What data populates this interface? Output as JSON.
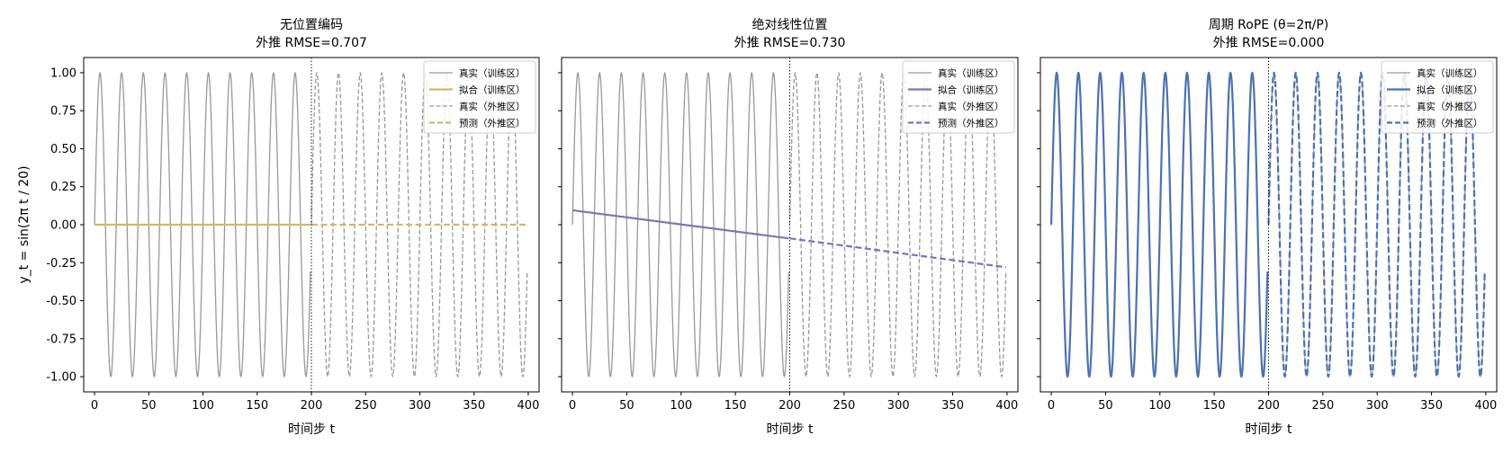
{
  "chart_data": [
    {
      "type": "line",
      "title": "无位置编码",
      "subtitle": "外推 RMSE=0.707",
      "xlabel": "时间步 t",
      "ylabel": "y_t = sin(2π t / 20)",
      "xlim": [
        -10,
        410
      ],
      "ylim": [
        -1.1,
        1.1
      ],
      "xticks": [
        0,
        50,
        100,
        150,
        200,
        250,
        300,
        350,
        400
      ],
      "yticks": [
        1.0,
        0.75,
        0.5,
        0.25,
        0.0,
        -0.25,
        -0.5,
        -0.75,
        -1.0
      ],
      "ytick_labels": [
        "1.00",
        "0.75",
        "0.50",
        "0.25",
        "0.00",
        "-0.25",
        "-0.50",
        "-0.75",
        "-1.00"
      ],
      "train_end": 200,
      "legend_position": "top-right",
      "grid": false,
      "series": [
        {
          "name": "真实（训练区）",
          "x_range": [
            0,
            199
          ],
          "function": "y = sin(2π t / 20)",
          "style": "solid",
          "color": "#999999"
        },
        {
          "name": "拟合（训练区）",
          "x": [
            0,
            199
          ],
          "y": [
            0.0,
            0.0
          ],
          "style": "solid",
          "color": "#ccb974"
        },
        {
          "name": "真实（外推区）",
          "x_range": [
            200,
            399
          ],
          "function": "y = sin(2π t / 20)",
          "style": "dashed",
          "color": "#999999"
        },
        {
          "name": "预测（外推区）",
          "x": [
            200,
            399
          ],
          "y": [
            0.0,
            0.0
          ],
          "style": "dashed",
          "color": "#ccb974"
        }
      ]
    },
    {
      "type": "line",
      "title": "绝对线性位置",
      "subtitle": "外推 RMSE=0.730",
      "xlabel": "时间步 t",
      "ylabel": "",
      "xlim": [
        -10,
        410
      ],
      "ylim": [
        -1.1,
        1.1
      ],
      "xticks": [
        0,
        50,
        100,
        150,
        200,
        250,
        300,
        350,
        400
      ],
      "yticks": [
        1.0,
        0.75,
        0.5,
        0.25,
        0.0,
        -0.25,
        -0.5,
        -0.75,
        -1.0
      ],
      "train_end": 200,
      "legend_position": "top-right",
      "grid": false,
      "series": [
        {
          "name": "真实（训练区）",
          "x_range": [
            0,
            199
          ],
          "function": "y = sin(2π t / 20)",
          "style": "solid",
          "color": "#999999"
        },
        {
          "name": "拟合（训练区）",
          "x": [
            0,
            199
          ],
          "y": [
            0.095,
            -0.09
          ],
          "style": "solid",
          "color": "#8172b2"
        },
        {
          "name": "真实（外推区）",
          "x_range": [
            200,
            399
          ],
          "function": "y = sin(2π t / 20)",
          "style": "dashed",
          "color": "#999999"
        },
        {
          "name": "预测（外推区）",
          "x": [
            200,
            399
          ],
          "y": [
            -0.09,
            -0.28
          ],
          "style": "dashed",
          "color": "#8172b2"
        }
      ]
    },
    {
      "type": "line",
      "title": "周期 RoPE (θ=2π/P)",
      "subtitle": "外推 RMSE=0.000",
      "xlabel": "时间步 t",
      "ylabel": "",
      "xlim": [
        -10,
        410
      ],
      "ylim": [
        -1.1,
        1.1
      ],
      "xticks": [
        0,
        50,
        100,
        150,
        200,
        250,
        300,
        350,
        400
      ],
      "yticks": [
        1.0,
        0.75,
        0.5,
        0.25,
        0.0,
        -0.25,
        -0.5,
        -0.75,
        -1.0
      ],
      "train_end": 200,
      "legend_position": "top-right",
      "grid": false,
      "series": [
        {
          "name": "真实（训练区）",
          "x_range": [
            0,
            199
          ],
          "function": "y = sin(2π t / 20)",
          "style": "solid",
          "color": "#999999"
        },
        {
          "name": "拟合（训练区）",
          "x_range": [
            0,
            199
          ],
          "function": "y = sin(2π t / 20)",
          "style": "solid",
          "color": "#4c72b0"
        },
        {
          "name": "真实（外推区）",
          "x_range": [
            200,
            399
          ],
          "function": "y = sin(2π t / 20)",
          "style": "dashed",
          "color": "#999999"
        },
        {
          "name": "预测（外推区）",
          "x_range": [
            200,
            399
          ],
          "function": "y = sin(2π t / 20)",
          "style": "dashed",
          "color": "#4c72b0"
        }
      ]
    }
  ]
}
